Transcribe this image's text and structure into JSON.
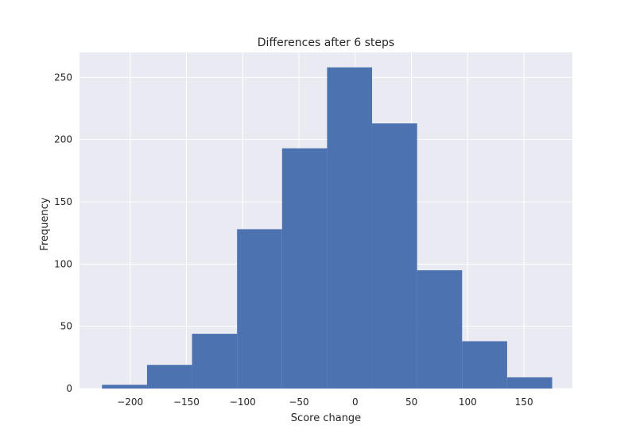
{
  "chart_data": {
    "type": "histogram",
    "title": "Differences after 6 steps",
    "xlabel": "Score change",
    "ylabel": "Frequency",
    "xlim": [
      -245,
      193
    ],
    "ylim": [
      0,
      270
    ],
    "grid": true,
    "bin_edges": [
      -225,
      -185,
      -145,
      -105,
      -65,
      -25,
      15,
      55,
      95,
      135,
      175
    ],
    "values": [
      3,
      19,
      44,
      128,
      193,
      258,
      213,
      95,
      38,
      9
    ],
    "xticks": [
      -200,
      -150,
      -100,
      -50,
      0,
      50,
      100,
      150
    ],
    "xtick_labels": [
      "−200",
      "−150",
      "−100",
      "−50",
      "0",
      "50",
      "100",
      "150"
    ],
    "yticks": [
      0,
      50,
      100,
      150,
      200,
      250
    ],
    "ytick_labels": [
      "0",
      "50",
      "100",
      "150",
      "200",
      "250"
    ],
    "colors": {
      "bar": "#4c72b0",
      "background": "#eaeaf2",
      "grid": "#ffffff"
    }
  }
}
